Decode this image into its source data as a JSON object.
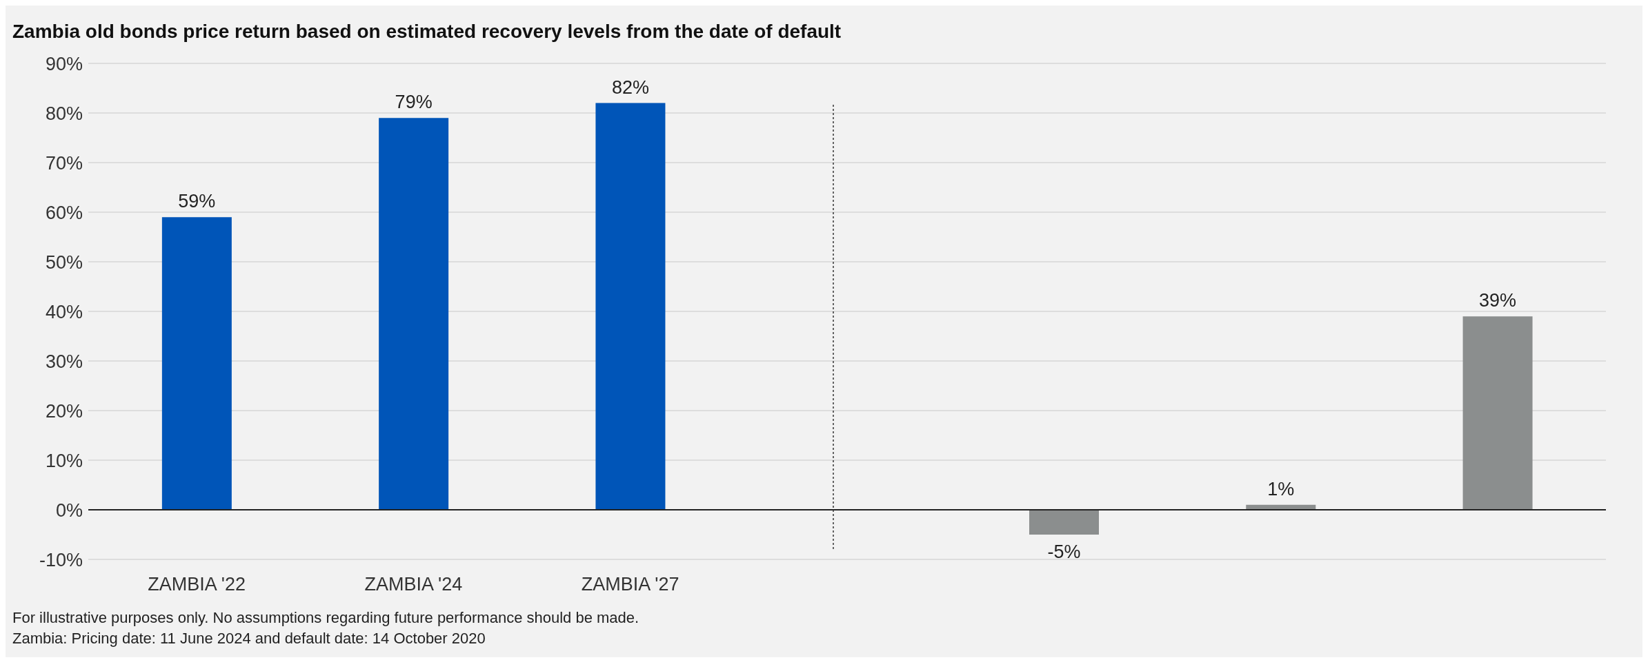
{
  "chart_data": {
    "type": "bar",
    "title": "Zambia old bonds price return based on estimated recovery levels from the date of default",
    "categories": [
      "ZAMBIA '22",
      "ZAMBIA '24",
      "ZAMBIA '27",
      null,
      null,
      null,
      null
    ],
    "values": [
      59,
      79,
      82,
      null,
      -5,
      1,
      39
    ],
    "colors": [
      "#0055b8",
      "#0055b8",
      "#0055b8",
      "#0055b8",
      "#8b8e8e",
      "#8b8e8e",
      "#8b8e8e"
    ],
    "value_labels": [
      "59%",
      "79%",
      "82%",
      null,
      "-5%",
      "1%",
      "39%"
    ],
    "ylim": [
      -10,
      90
    ],
    "yticks": [
      {
        "value": -10,
        "label": "-10%"
      },
      {
        "value": 0,
        "label": "0%"
      },
      {
        "value": 10,
        "label": "10%"
      },
      {
        "value": 20,
        "label": "20%"
      },
      {
        "value": 30,
        "label": "30%"
      },
      {
        "value": 40,
        "label": "40%"
      },
      {
        "value": 50,
        "label": "50%"
      },
      {
        "value": 60,
        "label": "60%"
      },
      {
        "value": 70,
        "label": "70%"
      },
      {
        "value": 80,
        "label": "80%"
      },
      {
        "value": 90,
        "label": "90%"
      }
    ],
    "grid": "y",
    "annotations": [
      "For illustrative purposes only. No assumptions regarding future performance should be made.",
      "Zambia: Pricing date: 11 June 2024 and default date: 14 October 2020"
    ]
  }
}
